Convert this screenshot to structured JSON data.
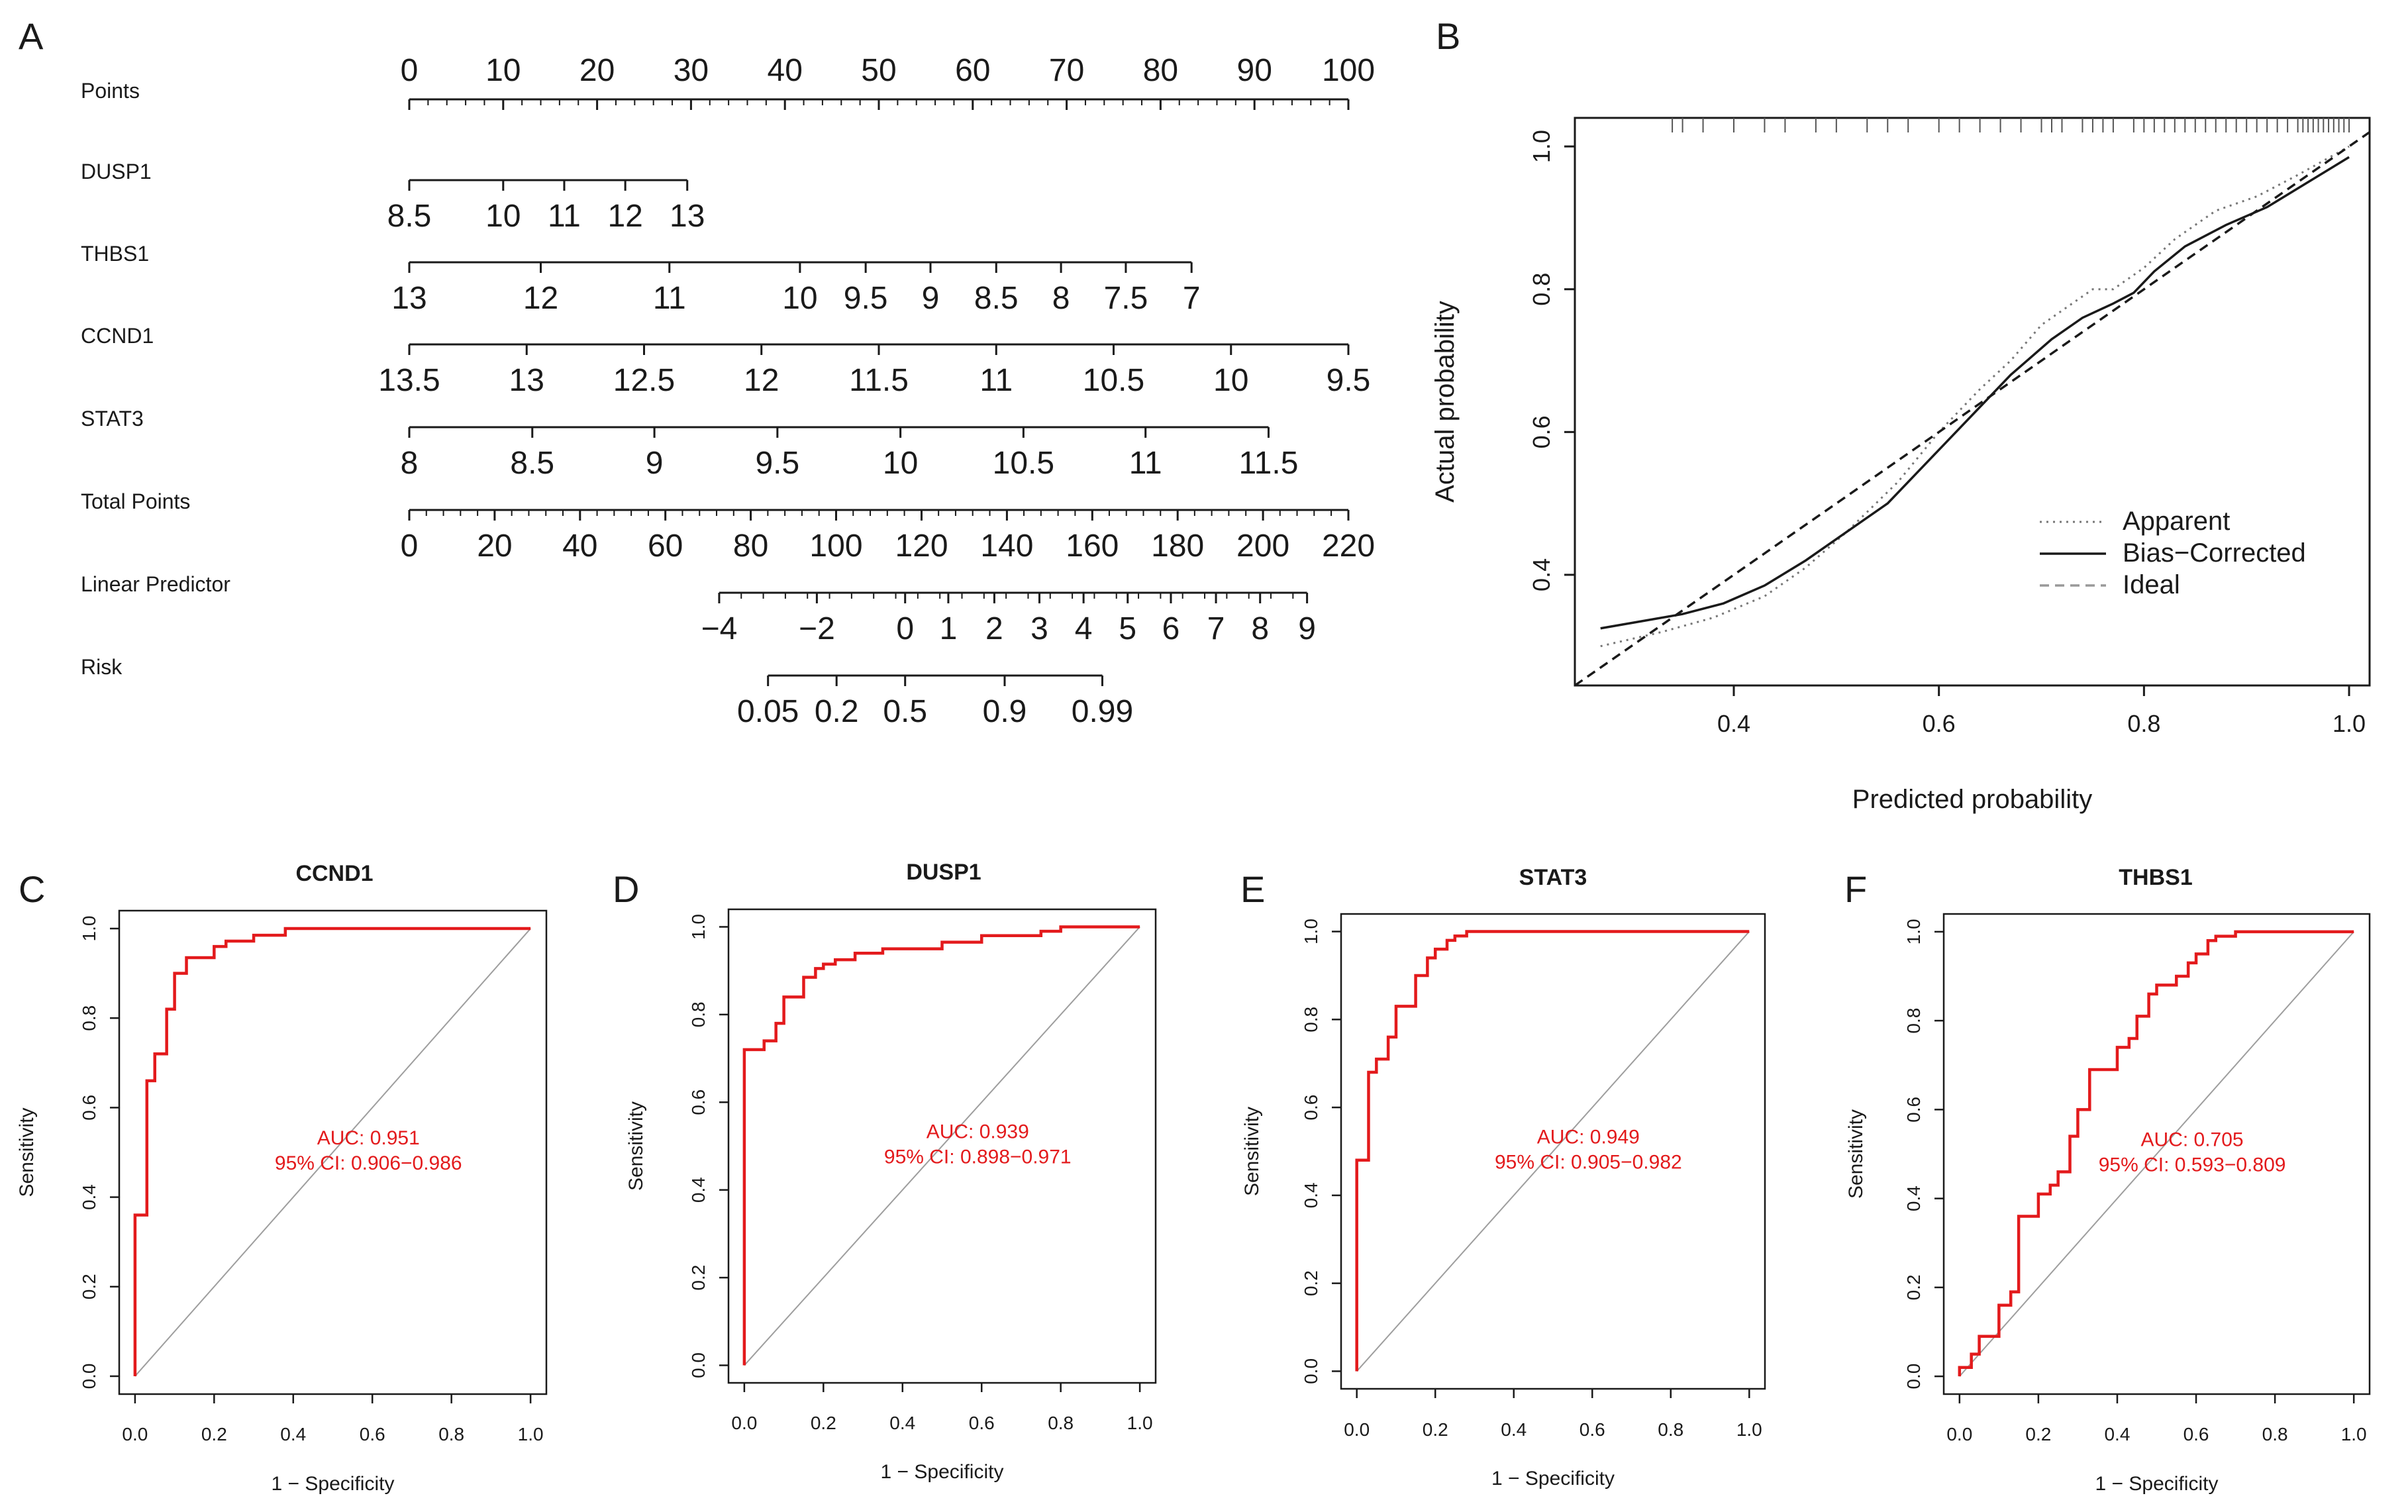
{
  "colors": {
    "roc_curve": "#e31a1c",
    "diagonal": "#9e9e9e",
    "text": "#1a1a1a",
    "axes": "#1a1a1a"
  },
  "panels": {
    "A": "A",
    "B": "B",
    "C": "C",
    "D": "D",
    "E": "E",
    "F": "F"
  },
  "chart_data": [
    {
      "type": "nomogram",
      "panel": "A",
      "rows": [
        {
          "name": "Points",
          "scale": [
            0,
            100
          ],
          "labels": [
            "0",
            "10",
            "20",
            "30",
            "40",
            "50",
            "60",
            "70",
            "80",
            "90",
            "100"
          ],
          "label_points": [
            0,
            10,
            20,
            30,
            40,
            50,
            60,
            70,
            80,
            90,
            100
          ],
          "minor_step": 2
        },
        {
          "name": "DUSP1",
          "scale": [
            0,
            29.6
          ],
          "labels": [
            "8.5",
            "10",
            "11",
            "12",
            "13"
          ],
          "label_points": [
            0,
            10,
            16.5,
            23,
            29.6
          ]
        },
        {
          "name": "THBS1",
          "scale": [
            0,
            83.3
          ],
          "labels": [
            "13",
            "12",
            "11",
            "10",
            "9.5",
            "9",
            "8.5",
            "8",
            "7.5",
            "7"
          ],
          "label_points": [
            0,
            14,
            27.7,
            41.6,
            48.6,
            55.5,
            62.5,
            69.4,
            76.3,
            83.3
          ]
        },
        {
          "name": "CCND1",
          "scale": [
            0,
            100
          ],
          "labels": [
            "13.5",
            "13",
            "12.5",
            "12",
            "11.5",
            "11",
            "10.5",
            "10",
            "9.5"
          ],
          "label_points": [
            0,
            12.5,
            25,
            37.5,
            50,
            62.5,
            75,
            87.5,
            100
          ]
        },
        {
          "name": "STAT3",
          "scale": [
            0,
            91.5
          ],
          "labels": [
            "8",
            "8.5",
            "9",
            "9.5",
            "10",
            "10.5",
            "11",
            "11.5"
          ],
          "label_points": [
            0,
            13.1,
            26.1,
            39.2,
            52.3,
            65.4,
            78.4,
            91.5
          ]
        },
        {
          "name": "Total Points",
          "scale": [
            0,
            100
          ],
          "labels": [
            "0",
            "20",
            "40",
            "60",
            "80",
            "100",
            "120",
            "140",
            "160",
            "180",
            "200",
            "220"
          ],
          "label_points": [
            0,
            9.09,
            18.18,
            27.27,
            36.36,
            45.45,
            54.55,
            63.64,
            72.73,
            81.82,
            90.91,
            100
          ],
          "minor_step": 1.818
        },
        {
          "name": "Linear Predictor",
          "scale": [
            33,
            95.6
          ],
          "labels": [
            "−4",
            "−2",
            "0",
            "1",
            "2",
            "3",
            "4",
            "5",
            "6",
            "7",
            "8",
            "9"
          ],
          "label_points": [
            33,
            43.4,
            52.8,
            57.4,
            62.3,
            67.1,
            71.8,
            76.5,
            81.1,
            85.9,
            90.6,
            95.6
          ],
          "minor_step": 2.35
        },
        {
          "name": "Risk",
          "scale": [
            38.2,
            73.8
          ],
          "labels": [
            "0.05",
            "0.2",
            "0.5",
            "0.9",
            "0.99"
          ],
          "label_points": [
            38.2,
            45.5,
            52.8,
            63.4,
            73.8
          ]
        }
      ]
    },
    {
      "type": "line",
      "panel": "B",
      "xlabel": "Predicted probability",
      "ylabel": "Actual probability",
      "xlim": [
        0.245,
        1.02
      ],
      "ylim": [
        0.245,
        1.04
      ],
      "xticks": [
        0.4,
        0.6,
        0.8,
        1.0
      ],
      "xtick_labels": [
        "0.4",
        "0.6",
        "0.8",
        "1.0"
      ],
      "yticks": [
        0.4,
        0.6,
        0.8,
        1.0
      ],
      "ytick_labels": [
        "0.4",
        "0.6",
        "0.8",
        "1.0"
      ],
      "legend": [
        "Apparent",
        "Bias−Corrected",
        "Ideal"
      ],
      "legend_position": "bottom-right",
      "series": [
        {
          "name": "Apparent",
          "x": [
            0.27,
            0.33,
            0.38,
            0.43,
            0.47,
            0.51,
            0.56,
            0.6,
            0.64,
            0.67,
            0.7,
            0.73,
            0.75,
            0.77,
            0.8,
            0.83,
            0.87,
            0.91,
            0.95,
            1.0
          ],
          "y": [
            0.3,
            0.32,
            0.34,
            0.37,
            0.41,
            0.46,
            0.53,
            0.6,
            0.66,
            0.7,
            0.75,
            0.78,
            0.8,
            0.8,
            0.83,
            0.87,
            0.91,
            0.93,
            0.96,
            1.0
          ]
        },
        {
          "name": "Bias−Corrected",
          "x": [
            0.27,
            0.31,
            0.35,
            0.39,
            0.43,
            0.47,
            0.51,
            0.55,
            0.59,
            0.63,
            0.67,
            0.71,
            0.74,
            0.77,
            0.79,
            0.81,
            0.84,
            0.88,
            0.92,
            0.96,
            1.0
          ],
          "y": [
            0.325,
            0.335,
            0.345,
            0.36,
            0.385,
            0.42,
            0.46,
            0.5,
            0.56,
            0.62,
            0.68,
            0.73,
            0.76,
            0.78,
            0.795,
            0.825,
            0.86,
            0.89,
            0.915,
            0.95,
            0.985
          ]
        },
        {
          "name": "Ideal",
          "x": [
            0.245,
            1.02
          ],
          "y": [
            0.245,
            1.02
          ]
        }
      ],
      "rug_x": [
        0.34,
        0.35,
        0.37,
        0.4,
        0.43,
        0.45,
        0.48,
        0.5,
        0.53,
        0.55,
        0.57,
        0.6,
        0.62,
        0.64,
        0.66,
        0.68,
        0.7,
        0.71,
        0.72,
        0.74,
        0.75,
        0.76,
        0.77,
        0.79,
        0.8,
        0.81,
        0.82,
        0.83,
        0.84,
        0.85,
        0.86,
        0.87,
        0.88,
        0.89,
        0.9,
        0.91,
        0.92,
        0.93,
        0.94,
        0.95,
        0.955,
        0.96,
        0.965,
        0.97,
        0.975,
        0.98,
        0.985,
        0.99,
        0.995,
        1.0
      ]
    },
    {
      "type": "roc",
      "panel": "C",
      "title": "CCND1",
      "xlabel": "1 − Specificity",
      "ylabel": "Sensitivity",
      "auc_text": "AUC: 0.951",
      "ci_text": "95% CI: 0.906−0.986",
      "x": [
        0,
        0,
        0.03,
        0.03,
        0.05,
        0.05,
        0.08,
        0.08,
        0.1,
        0.1,
        0.13,
        0.13,
        0.2,
        0.2,
        0.23,
        0.23,
        0.3,
        0.3,
        0.38,
        0.38,
        1.0
      ],
      "y": [
        0,
        0.36,
        0.36,
        0.66,
        0.66,
        0.72,
        0.72,
        0.82,
        0.82,
        0.9,
        0.9,
        0.935,
        0.935,
        0.96,
        0.96,
        0.972,
        0.972,
        0.985,
        0.985,
        1.0,
        1.0
      ]
    },
    {
      "type": "roc",
      "panel": "D",
      "title": "DUSP1",
      "xlabel": "1 − Specificity",
      "ylabel": "Sensitivity",
      "auc_text": "AUC: 0.939",
      "ci_text": "95% CI: 0.898−0.971",
      "x": [
        0,
        0,
        0.05,
        0.05,
        0.08,
        0.08,
        0.1,
        0.1,
        0.15,
        0.15,
        0.18,
        0.18,
        0.2,
        0.2,
        0.23,
        0.23,
        0.28,
        0.28,
        0.35,
        0.35,
        0.5,
        0.5,
        0.6,
        0.6,
        0.75,
        0.75,
        0.8,
        0.8,
        1.0
      ],
      "y": [
        0,
        0.72,
        0.72,
        0.74,
        0.74,
        0.78,
        0.78,
        0.84,
        0.84,
        0.885,
        0.885,
        0.905,
        0.905,
        0.915,
        0.915,
        0.925,
        0.925,
        0.94,
        0.94,
        0.95,
        0.95,
        0.965,
        0.965,
        0.98,
        0.98,
        0.99,
        0.99,
        1.0,
        1.0
      ]
    },
    {
      "type": "roc",
      "panel": "E",
      "title": "STAT3",
      "xlabel": "1 − Specificity",
      "ylabel": "Sensitivity",
      "auc_text": "AUC: 0.949",
      "ci_text": "95% CI: 0.905−0.982",
      "x": [
        0,
        0,
        0.03,
        0.03,
        0.05,
        0.05,
        0.08,
        0.08,
        0.1,
        0.1,
        0.15,
        0.15,
        0.18,
        0.18,
        0.2,
        0.2,
        0.23,
        0.23,
        0.25,
        0.25,
        0.28,
        0.28,
        1.0
      ],
      "y": [
        0,
        0.48,
        0.48,
        0.68,
        0.68,
        0.71,
        0.71,
        0.76,
        0.76,
        0.83,
        0.83,
        0.9,
        0.9,
        0.94,
        0.94,
        0.96,
        0.96,
        0.98,
        0.98,
        0.99,
        0.99,
        1.0,
        1.0
      ]
    },
    {
      "type": "roc",
      "panel": "F",
      "title": "THBS1",
      "xlabel": "1 − Specificity",
      "ylabel": "Sensitivity",
      "auc_text": "AUC: 0.705",
      "ci_text": "95% CI: 0.593−0.809",
      "x": [
        0,
        0,
        0.03,
        0.03,
        0.05,
        0.05,
        0.1,
        0.1,
        0.13,
        0.13,
        0.15,
        0.15,
        0.2,
        0.2,
        0.23,
        0.23,
        0.25,
        0.25,
        0.28,
        0.28,
        0.3,
        0.3,
        0.33,
        0.33,
        0.4,
        0.4,
        0.43,
        0.43,
        0.45,
        0.45,
        0.48,
        0.48,
        0.5,
        0.5,
        0.55,
        0.55,
        0.58,
        0.58,
        0.6,
        0.6,
        0.63,
        0.63,
        0.65,
        0.65,
        0.7,
        0.7,
        1.0
      ],
      "y": [
        0,
        0.02,
        0.02,
        0.05,
        0.05,
        0.09,
        0.09,
        0.16,
        0.16,
        0.19,
        0.19,
        0.36,
        0.36,
        0.41,
        0.41,
        0.43,
        0.43,
        0.46,
        0.46,
        0.54,
        0.54,
        0.6,
        0.6,
        0.69,
        0.69,
        0.74,
        0.74,
        0.76,
        0.76,
        0.81,
        0.81,
        0.86,
        0.86,
        0.88,
        0.88,
        0.9,
        0.9,
        0.93,
        0.93,
        0.95,
        0.95,
        0.98,
        0.98,
        0.99,
        0.99,
        1.0,
        1.0
      ]
    }
  ]
}
